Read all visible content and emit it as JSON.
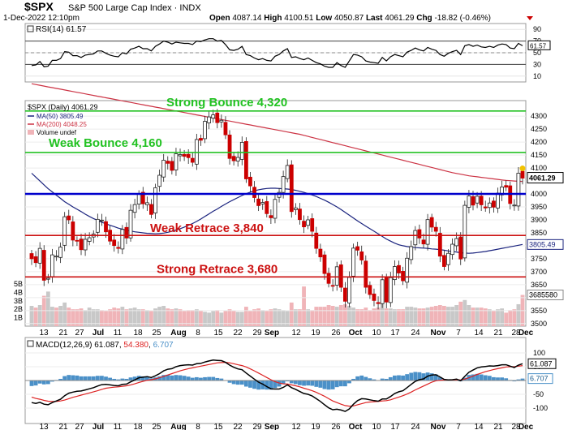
{
  "header": {
    "symbol": "$SPX",
    "name": "S&P 500 Large Cap Index",
    "exchange": "INDX",
    "datetime": "1-Dec-2022 12:10pm",
    "open_label": "Open",
    "open": "4087.14",
    "high_label": "High",
    "high": "4100.51",
    "low_label": "Low",
    "low": "4050.87",
    "last_label": "Last",
    "last": "4061.29",
    "chg_label": "Chg",
    "chg": "-18.82 (-0.46%)"
  },
  "rsi_panel": {
    "legend": "RSI(14) 61.57",
    "value_tag": "61.57",
    "ticks": [
      "90",
      "70",
      "50",
      "30",
      "10"
    ]
  },
  "price_panel": {
    "legend_main": "$SPX (Daily) 4061.29",
    "legend_ma50": "MA(50) 3805.49",
    "legend_ma200": "MA(200) 4048.25",
    "legend_volume": "Volume undef",
    "price_tag": "4061.29",
    "ma50_tag": "3805.49",
    "volume_tag": "3685580",
    "price_ticks": [
      "4300",
      "4250",
      "4200",
      "4150",
      "4100",
      "4050",
      "4000",
      "3950",
      "3900",
      "3850",
      "3800",
      "3750",
      "3700",
      "3650",
      "3600",
      "3550",
      "3500"
    ],
    "volume_ticks": [
      "5B",
      "4B",
      "3B",
      "2B",
      "1B"
    ],
    "levels": [
      {
        "label": "Strong Bounce 4,320",
        "value": 4320,
        "color": "#22c222"
      },
      {
        "label": "Weak Bounce 4,160",
        "value": 4160,
        "color": "#22c222"
      },
      {
        "label": "",
        "value": 4000,
        "color": "#0000cc"
      },
      {
        "label": "Weak Retrace 3,840",
        "value": 3840,
        "color": "#cc1111"
      },
      {
        "label": "Strong Retrace 3,680",
        "value": 3680,
        "color": "#cc1111"
      }
    ]
  },
  "macd_panel": {
    "legend_macd_label": "MACD(12,26,9)",
    "legend_macd": "61.087",
    "legend_signal": "54.380",
    "legend_hist": "6.707",
    "macd_tag": "61.087",
    "hist_tag": "6.707",
    "ticks": [
      "100",
      "50",
      "0",
      "-50",
      "-100"
    ]
  },
  "x_axis": {
    "labels": [
      "13",
      "21",
      "27",
      "Jul",
      "11",
      "18",
      "25",
      "Aug",
      "8",
      "15",
      "22",
      "29",
      "Sep",
      "12",
      "19",
      "26",
      "Oct",
      "10",
      "17",
      "24",
      "Nov",
      "7",
      "14",
      "21",
      "28",
      "Dec"
    ],
    "bold": [
      "Jul",
      "Aug",
      "Sep",
      "Oct",
      "Nov",
      "Dec"
    ]
  },
  "colors": {
    "up": "#228b22",
    "down": "#cc0000",
    "ma50": "#1a237e",
    "ma200": "#cc3344",
    "vol": "#f0b4b8",
    "macd": "#000000",
    "signal": "#dd2222",
    "hist": "#4a90c8"
  },
  "chart_data": {
    "type": "candlestick",
    "title": "$SPX S&P 500 Large Cap Index",
    "xlabel": "",
    "ylabel": "",
    "ylim": [
      3490,
      4360
    ],
    "dates": [
      "Jun 13",
      "Jun 14",
      "Jun 15",
      "Jun 16",
      "Jun 17",
      "Jun 21",
      "Jun 22",
      "Jun 23",
      "Jun 24",
      "Jun 27",
      "Jun 28",
      "Jun 29",
      "Jun 30",
      "Jul 1",
      "Jul 5",
      "Jul 6",
      "Jul 7",
      "Jul 8",
      "Jul 11",
      "Jul 12",
      "Jul 13",
      "Jul 14",
      "Jul 15",
      "Jul 18",
      "Jul 19",
      "Jul 20",
      "Jul 21",
      "Jul 22",
      "Jul 25",
      "Jul 26",
      "Jul 27",
      "Jul 28",
      "Jul 29",
      "Aug 1",
      "Aug 2",
      "Aug 3",
      "Aug 4",
      "Aug 5",
      "Aug 8",
      "Aug 9",
      "Aug 10",
      "Aug 11",
      "Aug 12",
      "Aug 15",
      "Aug 16",
      "Aug 17",
      "Aug 18",
      "Aug 19",
      "Aug 22",
      "Aug 23",
      "Aug 24",
      "Aug 25",
      "Aug 26",
      "Aug 29",
      "Aug 30",
      "Aug 31",
      "Sep 1",
      "Sep 2",
      "Sep 6",
      "Sep 7",
      "Sep 8",
      "Sep 9",
      "Sep 12",
      "Sep 13",
      "Sep 14",
      "Sep 15",
      "Sep 16",
      "Sep 19",
      "Sep 20",
      "Sep 21",
      "Sep 22",
      "Sep 23",
      "Sep 26",
      "Sep 27",
      "Sep 28",
      "Sep 29",
      "Sep 30",
      "Oct 3",
      "Oct 4",
      "Oct 5",
      "Oct 6",
      "Oct 7",
      "Oct 10",
      "Oct 11",
      "Oct 12",
      "Oct 13",
      "Oct 14",
      "Oct 17",
      "Oct 18",
      "Oct 19",
      "Oct 20",
      "Oct 21",
      "Oct 24",
      "Oct 25",
      "Oct 26",
      "Oct 27",
      "Oct 28",
      "Oct 31",
      "Nov 1",
      "Nov 2",
      "Nov 3",
      "Nov 4",
      "Nov 7",
      "Nov 8",
      "Nov 9",
      "Nov 10",
      "Nov 11",
      "Nov 14",
      "Nov 15",
      "Nov 16",
      "Nov 17",
      "Nov 18",
      "Nov 21",
      "Nov 22",
      "Nov 23",
      "Nov 25",
      "Nov 28",
      "Nov 29",
      "Nov 30",
      "Dec 1"
    ],
    "close": [
      3750,
      3735,
      3790,
      3667,
      3675,
      3765,
      3760,
      3795,
      3912,
      3900,
      3822,
      3818,
      3785,
      3825,
      3831,
      3845,
      3902,
      3899,
      3854,
      3818,
      3801,
      3790,
      3863,
      3830,
      3937,
      3959,
      3999,
      3962,
      3966,
      3921,
      4024,
      4072,
      4130,
      4118,
      4091,
      4155,
      4152,
      4145,
      4140,
      4122,
      4210,
      4207,
      4280,
      4297,
      4305,
      4275,
      4284,
      4228,
      4137,
      4128,
      4141,
      4199,
      4058,
      4031,
      3986,
      3955,
      3967,
      3924,
      3908,
      3979,
      4006,
      4067,
      4110,
      3932,
      3946,
      3901,
      3873,
      3900,
      3856,
      3790,
      3757,
      3693,
      3655,
      3647,
      3719,
      3640,
      3586,
      3678,
      3791,
      3783,
      3745,
      3640,
      3612,
      3589,
      3577,
      3669,
      3583,
      3677,
      3720,
      3695,
      3665,
      3752,
      3797,
      3859,
      3830,
      3807,
      3901,
      3872,
      3856,
      3760,
      3720,
      3771,
      3806,
      3828,
      3749,
      3956,
      3992,
      3957,
      3991,
      3958,
      3946,
      3965,
      3949,
      4003,
      4027,
      4026,
      3963,
      3957,
      4080,
      4061
    ],
    "ma50": [
      4080,
      4065,
      4050,
      4035,
      4020,
      4008,
      3995,
      3983,
      3970,
      3960,
      3950,
      3941,
      3932,
      3922,
      3913,
      3905,
      3898,
      3891,
      3885,
      3879,
      3874,
      3868,
      3864,
      3860,
      3857,
      3854,
      3852,
      3850,
      3848,
      3847,
      3846,
      3847,
      3849,
      3852,
      3856,
      3861,
      3866,
      3872,
      3879,
      3886,
      3894,
      3903,
      3913,
      3923,
      3933,
      3942,
      3952,
      3961,
      3970,
      3978,
      3986,
      3994,
      4001,
      4007,
      4012,
      4016,
      4019,
      4021,
      4022,
      4022,
      4021,
      4020,
      4019,
      4017,
      4014,
      4010,
      4006,
      4001,
      3996,
      3990,
      3983,
      3976,
      3968,
      3959,
      3950,
      3940,
      3929,
      3918,
      3907,
      3896,
      3886,
      3876,
      3866,
      3856,
      3846,
      3836,
      3826,
      3818,
      3810,
      3804,
      3800,
      3797,
      3795,
      3793,
      3792,
      3791,
      3790,
      3788,
      3787,
      3785,
      3783,
      3780,
      3778,
      3776,
      3773,
      3772,
      3771,
      3772,
      3774,
      3776,
      3778,
      3781,
      3784,
      3787,
      3790,
      3793,
      3796,
      3799,
      3802,
      3805
    ],
    "ma200": [
      4425,
      4422,
      4419,
      4416,
      4413,
      4410,
      4407,
      4404,
      4401,
      4398,
      4395,
      4392,
      4389,
      4386,
      4383,
      4380,
      4377,
      4374,
      4371,
      4368,
      4365,
      4362,
      4359,
      4356,
      4353,
      4350,
      4347,
      4344,
      4341,
      4338,
      4335,
      4332,
      4329,
      4326,
      4323,
      4320,
      4317,
      4314,
      4311,
      4308,
      4305,
      4302,
      4299,
      4296,
      4293,
      4290,
      4287,
      4284,
      4281,
      4278,
      4275,
      4272,
      4269,
      4266,
      4263,
      4260,
      4257,
      4254,
      4251,
      4248,
      4245,
      4242,
      4239,
      4236,
      4233,
      4230,
      4226,
      4222,
      4218,
      4214,
      4210,
      4206,
      4202,
      4198,
      4194,
      4190,
      4186,
      4182,
      4178,
      4174,
      4170,
      4166,
      4162,
      4158,
      4154,
      4150,
      4146,
      4142,
      4138,
      4134,
      4130,
      4126,
      4122,
      4118,
      4114,
      4110,
      4106,
      4102,
      4098,
      4094,
      4090,
      4086,
      4082,
      4079,
      4076,
      4073,
      4070,
      4068,
      4066,
      4064,
      4062,
      4060,
      4058,
      4056,
      4054,
      4052,
      4051,
      4050,
      4049,
      4048
    ],
    "volume_b": [
      2.4,
      2.2,
      2.5,
      3.6,
      4.1,
      2.3,
      2.2,
      2.4,
      2.8,
      2.2,
      2.0,
      2.0,
      2.1,
      1.9,
      2.2,
      2.0,
      2.0,
      1.9,
      1.8,
      2.0,
      2.2,
      2.1,
      2.3,
      2.0,
      2.1,
      2.2,
      2.0,
      2.0,
      1.9,
      1.8,
      2.1,
      2.3,
      2.4,
      2.1,
      2.0,
      2.1,
      2.0,
      1.8,
      1.9,
      1.9,
      2.0,
      1.8,
      1.7,
      1.6,
      1.8,
      1.9,
      1.6,
      1.8,
      2.0,
      1.8,
      1.7,
      1.7,
      2.3,
      1.8,
      2.0,
      2.1,
      1.9,
      1.8,
      2.0,
      2.1,
      2.0,
      1.9,
      1.8,
      2.8,
      2.0,
      2.0,
      4.7,
      2.0,
      1.9,
      2.3,
      2.3,
      2.3,
      2.5,
      2.4,
      2.3,
      2.5,
      2.6,
      2.4,
      2.2,
      2.0,
      2.0,
      2.2,
      1.9,
      2.1,
      2.2,
      2.9,
      2.1,
      2.1,
      2.0,
      2.0,
      2.0,
      2.3,
      2.3,
      2.2,
      2.1,
      2.1,
      2.2,
      2.3,
      2.4,
      2.5,
      2.4,
      2.3,
      2.3,
      2.5,
      2.9,
      3.1,
      2.5,
      2.2,
      2.2,
      2.2,
      2.1,
      2.0,
      1.8,
      2.0,
      2.1,
      1.6,
      1.9,
      2.0,
      2.6,
      3.7
    ],
    "rsi": [
      28,
      29,
      35,
      26,
      27,
      37,
      37,
      40,
      52,
      51,
      45,
      45,
      42,
      46,
      47,
      48,
      53,
      53,
      49,
      46,
      44,
      43,
      50,
      48,
      56,
      58,
      61,
      57,
      57,
      53,
      61,
      65,
      70,
      68,
      65,
      68,
      67,
      66,
      66,
      64,
      70,
      69,
      72,
      74,
      74,
      70,
      71,
      64,
      55,
      54,
      56,
      61,
      47,
      45,
      41,
      38,
      40,
      37,
      36,
      44,
      47,
      53,
      57,
      42,
      43,
      40,
      38,
      41,
      37,
      33,
      31,
      27,
      25,
      25,
      33,
      28,
      25,
      36,
      47,
      46,
      43,
      36,
      34,
      33,
      32,
      42,
      36,
      43,
      47,
      45,
      43,
      51,
      54,
      58,
      55,
      53,
      59,
      56,
      54,
      47,
      44,
      49,
      52,
      54,
      47,
      62,
      64,
      61,
      63,
      60,
      59,
      61,
      59,
      63,
      65,
      64,
      58,
      57,
      66,
      62
    ],
    "macd": [
      -80,
      -83,
      -79,
      -86,
      -88,
      -80,
      -74,
      -68,
      -55,
      -46,
      -42,
      -39,
      -38,
      -34,
      -30,
      -26,
      -20,
      -15,
      -14,
      -16,
      -18,
      -19,
      -14,
      -13,
      -5,
      2,
      10,
      12,
      14,
      11,
      17,
      25,
      35,
      41,
      43,
      50,
      54,
      56,
      57,
      56,
      61,
      62,
      67,
      71,
      74,
      73,
      72,
      66,
      56,
      48,
      42,
      39,
      27,
      16,
      5,
      -6,
      -13,
      -22,
      -30,
      -31,
      -31,
      -25,
      -16,
      -26,
      -32,
      -40,
      -47,
      -50,
      -56,
      -66,
      -76,
      -88,
      -99,
      -106,
      -104,
      -107,
      -112,
      -103,
      -86,
      -73,
      -66,
      -67,
      -70,
      -73,
      -75,
      -67,
      -67,
      -58,
      -47,
      -41,
      -37,
      -26,
      -14,
      -3,
      3,
      6,
      16,
      20,
      21,
      13,
      4,
      2,
      3,
      5,
      -1,
      15,
      30,
      38,
      46,
      49,
      51,
      53,
      52,
      54,
      57,
      57,
      52,
      47,
      56,
      61
    ],
    "signal": [
      -60,
      -65,
      -68,
      -72,
      -75,
      -76,
      -76,
      -74,
      -71,
      -66,
      -61,
      -57,
      -53,
      -49,
      -45,
      -41,
      -37,
      -32,
      -28,
      -26,
      -24,
      -23,
      -21,
      -19,
      -16,
      -12,
      -7,
      -3,
      1,
      3,
      6,
      10,
      15,
      20,
      25,
      30,
      35,
      39,
      43,
      46,
      49,
      52,
      55,
      58,
      61,
      64,
      65,
      66,
      64,
      61,
      57,
      54,
      49,
      42,
      35,
      27,
      19,
      11,
      3,
      -4,
      -9,
      -12,
      -13,
      -16,
      -19,
      -23,
      -28,
      -32,
      -37,
      -43,
      -50,
      -57,
      -66,
      -74,
      -80,
      -86,
      -91,
      -93,
      -92,
      -88,
      -84,
      -80,
      -78,
      -77,
      -76,
      -74,
      -73,
      -70,
      -65,
      -60,
      -55,
      -49,
      -42,
      -34,
      -27,
      -20,
      -13,
      -6,
      -1,
      1,
      2,
      2,
      2,
      3,
      2,
      5,
      10,
      16,
      22,
      27,
      32,
      36,
      40,
      43,
      46,
      49,
      50,
      50,
      52,
      54
    ],
    "hist": [
      -20,
      -18,
      -11,
      -14,
      -13,
      -4,
      2,
      6,
      16,
      20,
      19,
      18,
      15,
      15,
      15,
      15,
      17,
      17,
      14,
      10,
      6,
      4,
      7,
      6,
      11,
      14,
      17,
      15,
      13,
      8,
      11,
      15,
      20,
      21,
      18,
      20,
      19,
      17,
      14,
      10,
      12,
      10,
      12,
      13,
      13,
      9,
      7,
      0,
      -8,
      -13,
      -15,
      -15,
      -22,
      -26,
      -30,
      -33,
      -32,
      -33,
      -33,
      -27,
      -22,
      -13,
      -3,
      -10,
      -13,
      -17,
      -19,
      -18,
      -19,
      -23,
      -26,
      -31,
      -33,
      -32,
      -24,
      -21,
      -21,
      -10,
      6,
      15,
      18,
      13,
      8,
      4,
      1,
      7,
      6,
      12,
      18,
      19,
      18,
      23,
      28,
      31,
      30,
      26,
      29,
      26,
      22,
      12,
      2,
      0,
      1,
      2,
      -3,
      10,
      20,
      22,
      24,
      22,
      19,
      17,
      12,
      11,
      11,
      8,
      2,
      -3,
      4,
      7
    ]
  }
}
